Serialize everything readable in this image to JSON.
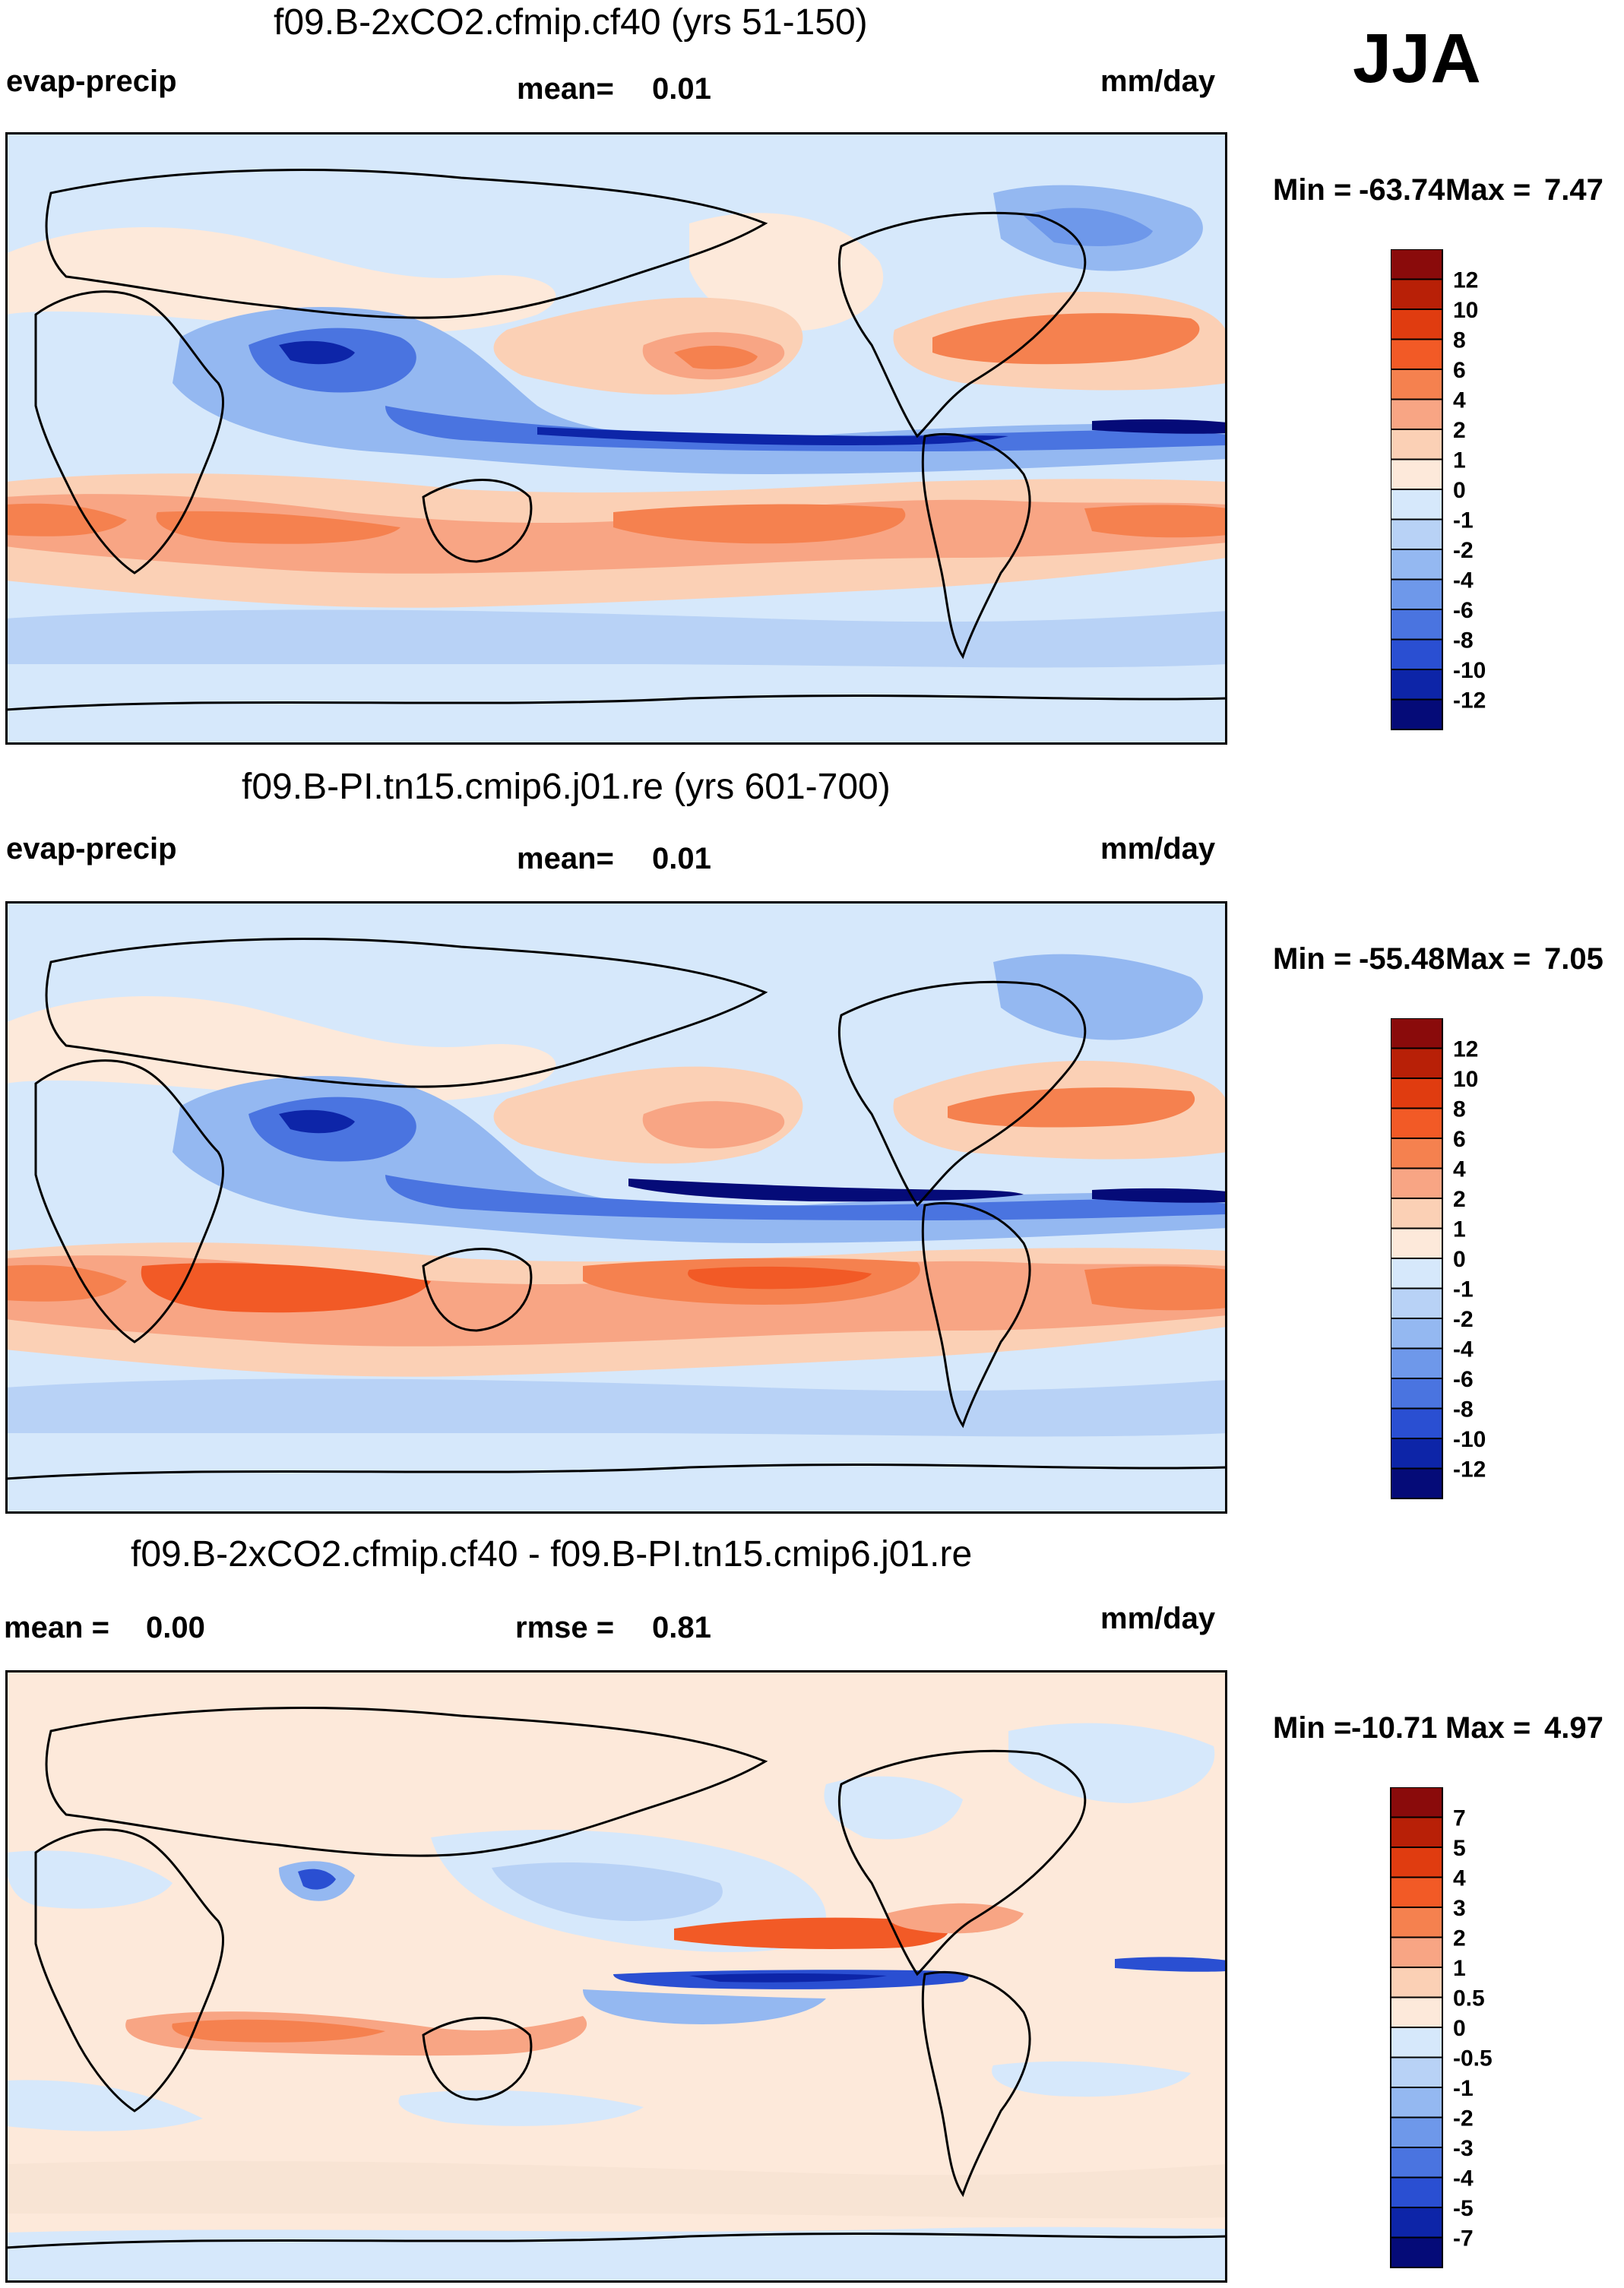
{
  "season": "JJA",
  "chart_data": [
    {
      "type": "heatmap",
      "title": "f09.B-2xCO2.cfmip.cf40 (yrs 51-150)",
      "variable": "evap-precip",
      "units": "mm/day",
      "mean_label": "mean=",
      "mean": "0.01",
      "min_label": "Min =",
      "min": "-63.74",
      "max_label": "Max =",
      "max": "7.47",
      "levels": [
        "12",
        "10",
        "8",
        "6",
        "4",
        "2",
        "1",
        "0",
        "-1",
        "-2",
        "-4",
        "-6",
        "-8",
        "-10",
        "-12"
      ],
      "colors": [
        "#8a0b0b",
        "#b82007",
        "#e03c10",
        "#f25a26",
        "#f5814f",
        "#f8a584",
        "#fbd0b5",
        "#fde9da",
        "#d6e8fb",
        "#b8d2f6",
        "#94b8f1",
        "#6e98ea",
        "#4a74e0",
        "#2a4fd2",
        "#0d25a8",
        "#050b78"
      ]
    },
    {
      "type": "heatmap",
      "title": "f09.B-PI.tn15.cmip6.j01.re (yrs 601-700)",
      "variable": "evap-precip",
      "units": "mm/day",
      "mean_label": "mean=",
      "mean": "0.01",
      "min_label": "Min =",
      "min": "-55.48",
      "max_label": "Max =",
      "max": "7.05",
      "levels": [
        "12",
        "10",
        "8",
        "6",
        "4",
        "2",
        "1",
        "0",
        "-1",
        "-2",
        "-4",
        "-6",
        "-8",
        "-10",
        "-12"
      ],
      "colors": [
        "#8a0b0b",
        "#b82007",
        "#e03c10",
        "#f25a26",
        "#f5814f",
        "#f8a584",
        "#fbd0b5",
        "#fde9da",
        "#d6e8fb",
        "#b8d2f6",
        "#94b8f1",
        "#6e98ea",
        "#4a74e0",
        "#2a4fd2",
        "#0d25a8",
        "#050b78"
      ]
    },
    {
      "type": "heatmap",
      "title": "f09.B-2xCO2.cfmip.cf40 - f09.B-PI.tn15.cmip6.j01.re",
      "units": "mm/day",
      "mean_label": "mean =",
      "mean": "0.00",
      "rmse_label": "rmse =",
      "rmse": "0.81",
      "min_label": "Min =",
      "min": "-10.71",
      "max_label": "Max =",
      "max": "4.97",
      "levels": [
        "7",
        "5",
        "4",
        "3",
        "2",
        "1",
        "0.5",
        "0",
        "-0.5",
        "-1",
        "-2",
        "-3",
        "-4",
        "-5",
        "-7"
      ],
      "colors": [
        "#8a0b0b",
        "#b82007",
        "#e03c10",
        "#f25a26",
        "#f5814f",
        "#f8a584",
        "#fbd0b5",
        "#fde9da",
        "#d6e8fb",
        "#b8d2f6",
        "#94b8f1",
        "#6e98ea",
        "#4a74e0",
        "#2a4fd2",
        "#0d25a8",
        "#050b78"
      ]
    }
  ]
}
